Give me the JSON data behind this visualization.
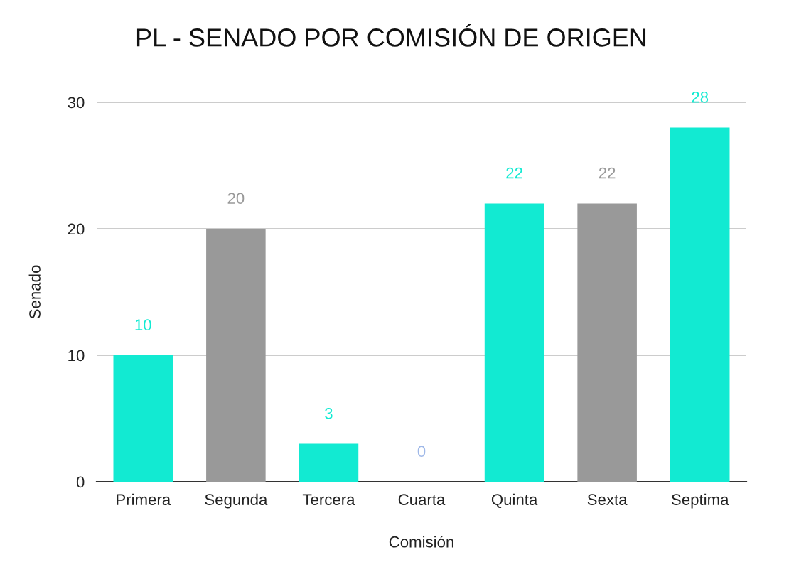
{
  "chart_data": {
    "type": "bar",
    "title": "PL - SENADO POR COMISIÓN DE ORIGEN",
    "xlabel": "Comisión",
    "ylabel": "Senado",
    "categories": [
      "Primera",
      "Segunda",
      "Tercera",
      "Cuarta",
      "Quinta",
      "Sexta",
      "Septima"
    ],
    "values": [
      10,
      20,
      3,
      0,
      22,
      22,
      28
    ],
    "colors": [
      "#12ead2",
      "#999999",
      "#12ead2",
      "#9fb8e8",
      "#12ead2",
      "#999999",
      "#12ead2"
    ],
    "ylim": [
      0,
      30
    ],
    "yticks": [
      0,
      10,
      20,
      30
    ],
    "grid": "y",
    "data_labels": true
  }
}
